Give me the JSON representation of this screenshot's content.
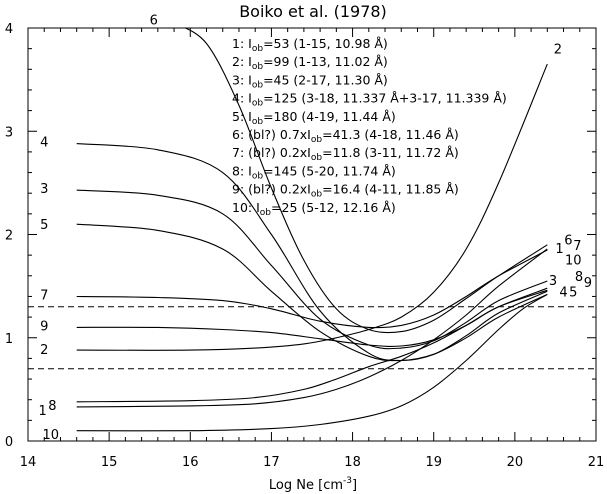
{
  "chart_data": {
    "type": "line",
    "title": "Boiko et al. (1978)",
    "xlabel": "Log Ne [cm",
    "xlabel_sup": "-3",
    "xlabel_close": "]",
    "ylabel": "",
    "xlim": [
      14,
      21
    ],
    "ylim": [
      0,
      4
    ],
    "x_ticks": [
      "14",
      "15",
      "16",
      "17",
      "18",
      "19",
      "20",
      "21"
    ],
    "y_ticks": [
      "0",
      "1",
      "2",
      "3",
      "4"
    ],
    "grid": false,
    "reference_lines": [
      1.3,
      0.7
    ],
    "legend": [
      {
        "n": "1:",
        "i": "I",
        "sub": "ob",
        "rest": "=53 (1-15, 10.98 Å)"
      },
      {
        "n": "2:",
        "i": "I",
        "sub": "ob",
        "rest": "=99 (1-13, 11.02 Å)"
      },
      {
        "n": "3:",
        "i": "I",
        "sub": "ob",
        "rest": "=45 (2-17, 11.30 Å)"
      },
      {
        "n": "4:",
        "i": "I",
        "sub": "ob",
        "rest": "=125 (3-18, 11.337 Å+3-17, 11.339 Å)"
      },
      {
        "n": "5:",
        "i": "I",
        "sub": "ob",
        "rest": "=180 (4-19, 11.44 Å)"
      },
      {
        "n": "6:",
        "pre": "(bl?) 0.7xI",
        "sub": "ob",
        "rest": "=41.3 (4-18, 11.46 Å)"
      },
      {
        "n": "7:",
        "pre": "(bl?) 0.2xI",
        "sub": "ob",
        "rest": "=11.8 (3-11, 11.72 Å)"
      },
      {
        "n": "8:",
        "i": "I",
        "sub": "ob",
        "rest": "=145 (5-20, 11.74 Å)"
      },
      {
        "n": "9:",
        "pre": "(bl?) 0.2xI",
        "sub": "ob",
        "rest": "=16.4 (4-11, 11.85 Å)"
      },
      {
        "n": "10:",
        "i": "I",
        "sub": "ob",
        "rest": "=25 (5-12, 12.16 Å)"
      }
    ],
    "series": [
      {
        "name": "1",
        "x": [
          14.6,
          16,
          16.8,
          17.4,
          17.8,
          18.2,
          18.6,
          19,
          19.4,
          19.8,
          20.4
        ],
        "y": [
          0.33,
          0.34,
          0.36,
          0.42,
          0.5,
          0.62,
          0.78,
          0.98,
          1.22,
          1.5,
          1.86
        ]
      },
      {
        "name": "2",
        "x": [
          14.6,
          16,
          16.8,
          17.4,
          17.8,
          18.2,
          18.6,
          19,
          19.4,
          19.8,
          20.4
        ],
        "y": [
          0.88,
          0.88,
          0.9,
          0.94,
          1.0,
          1.08,
          1.2,
          1.44,
          1.86,
          2.5,
          3.65
        ]
      },
      {
        "name": "3",
        "x": [
          14.6,
          15.6,
          16.4,
          17,
          17.6,
          18.2,
          18.6,
          19,
          19.4,
          19.8,
          20.4
        ],
        "y": [
          2.43,
          2.38,
          2.2,
          1.7,
          1.18,
          0.93,
          0.9,
          0.97,
          1.15,
          1.36,
          1.55
        ]
      },
      {
        "name": "4",
        "x": [
          14.6,
          15.6,
          16.4,
          17,
          17.6,
          18.2,
          18.6,
          19,
          19.4,
          19.8,
          20.4
        ],
        "y": [
          2.88,
          2.82,
          2.6,
          2.0,
          1.26,
          0.85,
          0.78,
          0.84,
          1.02,
          1.24,
          1.45
        ]
      },
      {
        "name": "5",
        "x": [
          14.6,
          15.6,
          16.4,
          17,
          17.6,
          18.2,
          18.6,
          19,
          19.4,
          19.8,
          20.4
        ],
        "y": [
          2.1,
          2.04,
          1.86,
          1.45,
          1.06,
          0.82,
          0.78,
          0.84,
          1.0,
          1.2,
          1.42
        ]
      },
      {
        "name": "6",
        "x": [
          15.8,
          16.2,
          16.6,
          17,
          17.4,
          17.8,
          18.2,
          18.6,
          19,
          19.4,
          19.8,
          20.4
        ],
        "y": [
          4.05,
          3.85,
          3.25,
          2.45,
          1.75,
          1.28,
          1.08,
          1.06,
          1.17,
          1.38,
          1.6,
          1.9
        ]
      },
      {
        "name": "7",
        "x": [
          14.6,
          15.6,
          16.4,
          17,
          17.6,
          18.2,
          18.6,
          19,
          19.4,
          19.8,
          20.4
        ],
        "y": [
          1.4,
          1.39,
          1.36,
          1.28,
          1.16,
          1.1,
          1.12,
          1.22,
          1.4,
          1.6,
          1.85
        ]
      },
      {
        "name": "8",
        "x": [
          14.6,
          16,
          16.8,
          17.4,
          17.8,
          18.2,
          18.6,
          19,
          19.4,
          19.8,
          20.4
        ],
        "y": [
          0.38,
          0.39,
          0.42,
          0.5,
          0.6,
          0.72,
          0.82,
          0.95,
          1.12,
          1.3,
          1.48
        ]
      },
      {
        "name": "9",
        "x": [
          14.6,
          15.6,
          16.4,
          17,
          17.6,
          18.2,
          18.6,
          19,
          19.4,
          19.8,
          20.4
        ],
        "y": [
          1.1,
          1.1,
          1.08,
          1.05,
          0.99,
          0.93,
          0.92,
          0.98,
          1.12,
          1.3,
          1.46
        ]
      },
      {
        "name": "10",
        "x": [
          14.6,
          16,
          17,
          17.6,
          18.2,
          18.6,
          19,
          19.4,
          19.8,
          20.1,
          20.4
        ],
        "y": [
          0.1,
          0.1,
          0.12,
          0.16,
          0.24,
          0.34,
          0.52,
          0.78,
          1.08,
          1.28,
          1.42
        ]
      }
    ],
    "curve_labels": [
      {
        "text": "6",
        "x": 15.55,
        "y": 4.08
      },
      {
        "text": "4",
        "x": 14.2,
        "y": 2.9
      },
      {
        "text": "3",
        "x": 14.2,
        "y": 2.45
      },
      {
        "text": "5",
        "x": 14.2,
        "y": 2.1
      },
      {
        "text": "7",
        "x": 14.2,
        "y": 1.42
      },
      {
        "text": "9",
        "x": 14.2,
        "y": 1.12
      },
      {
        "text": "2",
        "x": 14.2,
        "y": 0.89
      },
      {
        "text": "1",
        "x": 14.18,
        "y": 0.3
      },
      {
        "text": "8",
        "x": 14.3,
        "y": 0.35
      },
      {
        "text": "10",
        "x": 14.28,
        "y": 0.07
      },
      {
        "text": "2",
        "x": 20.53,
        "y": 3.8
      },
      {
        "text": "1",
        "x": 20.55,
        "y": 1.87
      },
      {
        "text": "6",
        "x": 20.66,
        "y": 1.95
      },
      {
        "text": "7",
        "x": 20.77,
        "y": 1.9
      },
      {
        "text": "10",
        "x": 20.72,
        "y": 1.76
      },
      {
        "text": "3",
        "x": 20.47,
        "y": 1.56
      },
      {
        "text": "8",
        "x": 20.79,
        "y": 1.6
      },
      {
        "text": "9",
        "x": 20.9,
        "y": 1.54
      },
      {
        "text": "4",
        "x": 20.6,
        "y": 1.45
      },
      {
        "text": "5",
        "x": 20.72,
        "y": 1.45
      }
    ]
  }
}
